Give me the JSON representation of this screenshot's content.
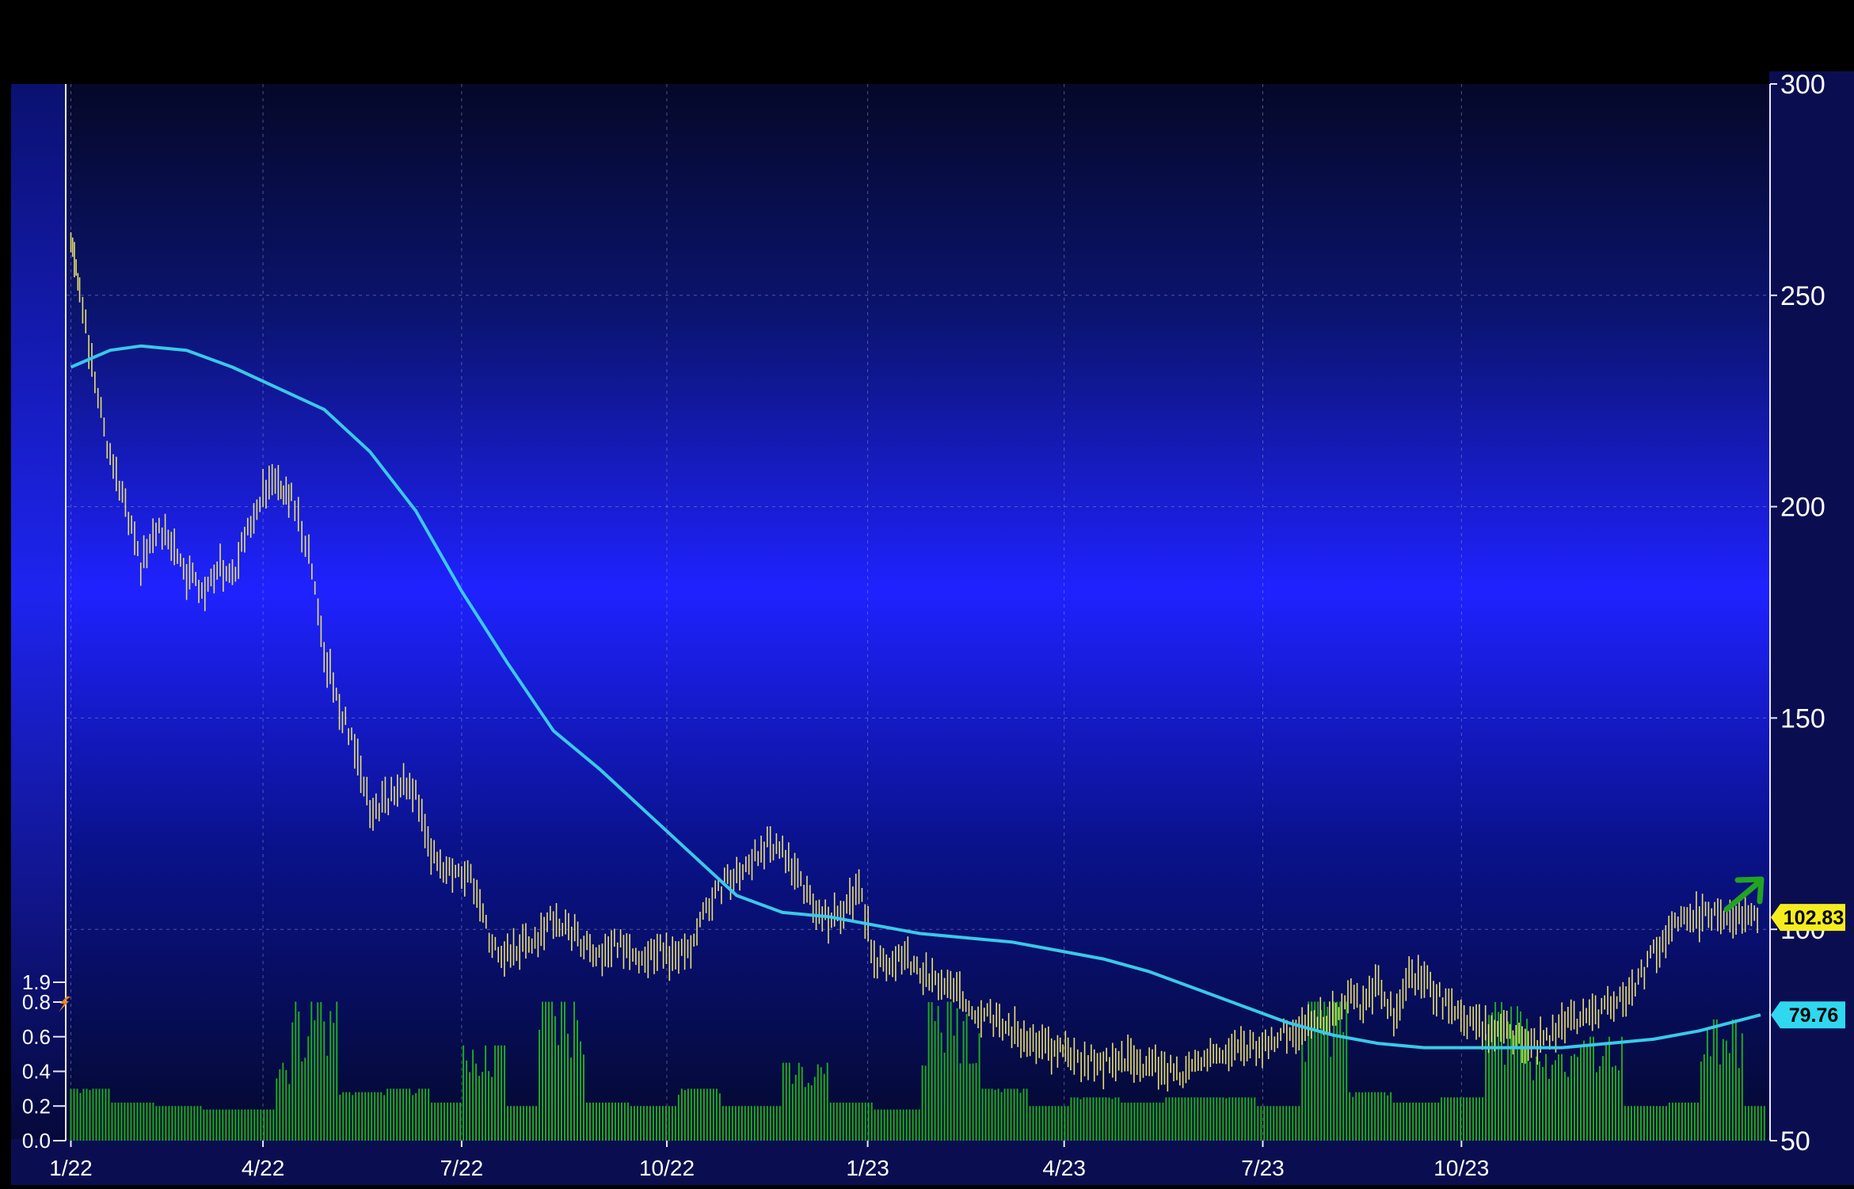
{
  "chart_data": {
    "type": "bar",
    "title": "",
    "xlabel": "",
    "ylabel": "",
    "x_tick_labels": [
      "1/22",
      "4/22",
      "7/22",
      "10/22",
      "1/23",
      "4/23",
      "7/23",
      "10/23"
    ],
    "x_tick_dates": [
      "2022-01-03",
      "2022-04-01",
      "2022-07-01",
      "2022-10-03",
      "2023-01-03",
      "2023-04-03",
      "2023-07-03",
      "2023-10-02"
    ],
    "x_range": [
      "2022-01-01",
      "2024-02-20"
    ],
    "price_axis": {
      "ylim": [
        50,
        300
      ],
      "ticks": [
        50,
        100,
        150,
        200,
        250,
        300
      ],
      "tick_labels": [
        "50",
        "100",
        "150",
        "200",
        "250",
        "300"
      ]
    },
    "volume_axis": {
      "ylim": [
        0,
        1.9
      ],
      "ticks": [
        0.0,
        0.2,
        0.4,
        0.6,
        0.8,
        1.9
      ],
      "tick_labels": [
        "0.0",
        "0.2",
        "0.4",
        "0.6",
        "0.8",
        "1.9"
      ]
    },
    "grid": true,
    "series": [
      {
        "kind": "price_bars",
        "color": "#e8e070",
        "x": [
          "2022-01-03",
          "2022-01-07",
          "2022-01-14",
          "2022-01-21",
          "2022-01-28",
          "2022-02-04",
          "2022-02-11",
          "2022-02-18",
          "2022-02-25",
          "2022-03-04",
          "2022-03-11",
          "2022-03-18",
          "2022-03-25",
          "2022-04-01",
          "2022-04-08",
          "2022-04-14",
          "2022-04-22",
          "2022-04-29",
          "2022-05-06",
          "2022-05-13",
          "2022-05-20",
          "2022-05-27",
          "2022-06-03",
          "2022-06-10",
          "2022-06-17",
          "2022-06-24",
          "2022-07-01",
          "2022-07-08",
          "2022-07-15",
          "2022-07-22",
          "2022-07-29",
          "2022-08-05",
          "2022-08-12",
          "2022-08-19",
          "2022-08-26",
          "2022-09-02",
          "2022-09-09",
          "2022-09-16",
          "2022-09-23",
          "2022-09-30",
          "2022-10-07",
          "2022-10-14",
          "2022-10-21",
          "2022-10-28",
          "2022-11-04",
          "2022-11-11",
          "2022-11-18",
          "2022-11-25",
          "2022-12-02",
          "2022-12-09",
          "2022-12-16",
          "2022-12-23",
          "2022-12-30",
          "2023-01-06",
          "2023-01-13",
          "2023-01-20",
          "2023-01-27",
          "2023-02-03",
          "2023-02-10",
          "2023-02-17",
          "2023-02-24",
          "2023-03-03",
          "2023-03-10",
          "2023-03-17",
          "2023-03-24",
          "2023-03-31",
          "2023-04-06",
          "2023-04-14",
          "2023-04-21",
          "2023-04-28",
          "2023-05-05",
          "2023-05-12",
          "2023-05-19",
          "2023-05-26",
          "2023-06-02",
          "2023-06-09",
          "2023-06-16",
          "2023-06-23",
          "2023-06-30",
          "2023-07-07",
          "2023-07-14",
          "2023-07-21",
          "2023-07-28",
          "2023-08-04",
          "2023-08-11",
          "2023-08-18",
          "2023-08-25",
          "2023-09-01",
          "2023-09-08",
          "2023-09-15",
          "2023-09-22",
          "2023-09-29",
          "2023-10-06",
          "2023-10-13",
          "2023-10-20",
          "2023-10-27",
          "2023-11-03",
          "2023-11-10",
          "2023-11-17",
          "2023-11-24",
          "2023-12-01",
          "2023-12-08",
          "2023-12-15",
          "2023-12-22",
          "2023-12-29",
          "2024-01-05",
          "2024-01-12",
          "2024-01-19",
          "2024-01-26",
          "2024-02-02",
          "2024-02-09",
          "2024-02-16"
        ],
        "values": [
          262,
          252,
          228,
          212,
          200,
          186,
          194,
          192,
          184,
          180,
          186,
          184,
          194,
          204,
          206,
          202,
          188,
          166,
          152,
          144,
          128,
          130,
          134,
          132,
          118,
          113,
          114,
          110,
          95,
          94,
          96,
          98,
          103,
          100,
          96,
          93,
          97,
          95,
          93,
          95,
          93,
          96,
          104,
          110,
          113,
          116,
          120,
          118,
          112,
          106,
          102,
          105,
          110,
          93,
          90,
          94,
          90,
          88,
          86,
          83,
          80,
          78,
          76,
          74,
          72,
          71,
          70,
          69,
          68,
          70,
          69,
          68,
          67,
          66,
          68,
          69,
          71,
          71,
          72,
          74,
          76,
          76,
          78,
          80,
          84,
          82,
          87,
          80,
          89,
          88,
          84,
          80,
          78,
          76,
          76,
          75,
          72,
          74,
          77,
          79,
          80,
          82,
          84,
          88,
          94,
          100,
          102,
          103,
          102.83,
          102.83,
          102.83,
          102.83
        ]
      },
      {
        "kind": "moving_average",
        "color": "#39c9e8",
        "x": [
          "2022-01-03",
          "2022-01-21",
          "2022-02-04",
          "2022-02-25",
          "2022-03-18",
          "2022-04-08",
          "2022-04-29",
          "2022-05-20",
          "2022-06-10",
          "2022-07-01",
          "2022-07-22",
          "2022-08-12",
          "2022-09-02",
          "2022-09-23",
          "2022-10-14",
          "2022-11-04",
          "2022-11-25",
          "2022-12-16",
          "2023-01-06",
          "2023-01-27",
          "2023-02-17",
          "2023-03-10",
          "2023-03-31",
          "2023-04-21",
          "2023-05-12",
          "2023-06-02",
          "2023-06-23",
          "2023-07-14",
          "2023-08-04",
          "2023-08-25",
          "2023-09-15",
          "2023-10-06",
          "2023-10-27",
          "2023-11-17",
          "2023-12-08",
          "2023-12-29",
          "2024-01-19",
          "2024-02-16"
        ],
        "values": [
          233,
          237,
          238,
          237,
          233,
          228,
          223,
          213,
          199,
          180,
          163,
          147,
          138,
          128,
          118,
          108,
          104,
          103,
          101,
          99,
          98,
          97,
          95,
          93,
          90,
          86,
          82,
          78,
          75,
          73,
          72,
          72,
          72,
          72,
          73,
          74,
          76,
          79.76
        ]
      },
      {
        "kind": "volume",
        "color": "#1fa81f",
        "x": [
          "2022-01-03",
          "2022-01-21",
          "2022-02-11",
          "2022-03-04",
          "2022-03-25",
          "2022-04-06",
          "2022-04-14",
          "2022-05-06",
          "2022-05-27",
          "2022-06-17",
          "2022-07-01",
          "2022-07-22",
          "2022-08-05",
          "2022-08-26",
          "2022-09-16",
          "2022-10-07",
          "2022-10-28",
          "2022-11-10",
          "2022-11-25",
          "2022-12-16",
          "2023-01-06",
          "2023-01-27",
          "2023-02-03",
          "2023-02-24",
          "2023-03-17",
          "2023-04-06",
          "2023-04-28",
          "2023-05-19",
          "2023-06-09",
          "2023-06-30",
          "2023-07-21",
          "2023-08-11",
          "2023-09-01",
          "2023-09-22",
          "2023-10-13",
          "2023-11-03",
          "2023-11-24",
          "2023-12-15",
          "2024-01-05",
          "2024-01-19",
          "2024-02-09"
        ],
        "values": [
          0.3,
          0.22,
          0.2,
          0.18,
          0.18,
          0.45,
          0.82,
          0.28,
          0.3,
          0.22,
          0.55,
          0.2,
          0.82,
          0.22,
          0.2,
          0.3,
          0.2,
          0.2,
          0.45,
          0.22,
          0.18,
          0.8,
          0.82,
          0.3,
          0.2,
          0.25,
          0.22,
          0.25,
          0.25,
          0.2,
          0.82,
          0.28,
          0.22,
          0.25,
          0.8,
          0.5,
          0.6,
          0.2,
          0.22,
          0.7,
          0.2
        ]
      }
    ],
    "price_badges": [
      {
        "label": "102.83",
        "value": 102.83,
        "color": "#f5ec1f"
      },
      {
        "label": "79.76",
        "value": 79.76,
        "color": "#2fd8ef"
      }
    ],
    "annotations": [
      {
        "kind": "arrow",
        "color": "#22a322",
        "direction": "up-right",
        "meaning": "price rising above moving average"
      },
      {
        "kind": "event-marker",
        "color": "#e08a22",
        "symbol": "lightning",
        "axis": "volume"
      }
    ]
  }
}
